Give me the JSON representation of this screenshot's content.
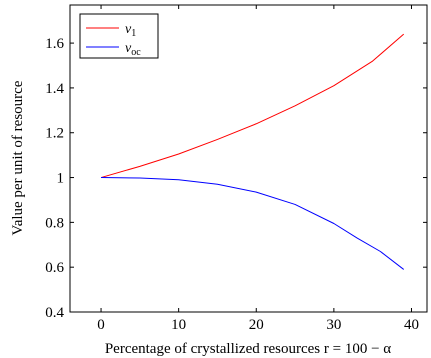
{
  "chart_data": {
    "type": "line",
    "title": "",
    "xlabel": "Percentage of crystallized resources r = 100 − α",
    "ylabel": "Value per unit of resource",
    "xlim": [
      -4,
      42
    ],
    "ylim": [
      0.4,
      1.77
    ],
    "xticks": [
      0,
      10,
      20,
      30,
      40
    ],
    "yticks": [
      0.4,
      0.6,
      0.8,
      1.0,
      1.2,
      1.4,
      1.6
    ],
    "ytick_labels": [
      "0.4",
      "0.6",
      "0.8",
      "1",
      "1.2",
      "1.4",
      "1.6"
    ],
    "xtick_labels": [
      "0",
      "10",
      "20",
      "30",
      "40"
    ],
    "grid": false,
    "legend_position": "top-left",
    "series": [
      {
        "name": "v1",
        "label_main": "v",
        "label_sub": "1",
        "color": "#ff0000",
        "x": [
          0,
          5,
          10,
          15,
          20,
          25,
          30,
          35,
          39
        ],
        "y": [
          1.0,
          1.05,
          1.105,
          1.17,
          1.24,
          1.32,
          1.41,
          1.52,
          1.64
        ]
      },
      {
        "name": "voc",
        "label_main": "v",
        "label_sub": "oc",
        "color": "#0000ff",
        "x": [
          0,
          5,
          10,
          15,
          20,
          25,
          30,
          33,
          36,
          39
        ],
        "y": [
          1.0,
          0.998,
          0.99,
          0.97,
          0.935,
          0.88,
          0.795,
          0.73,
          0.67,
          0.59
        ]
      }
    ]
  }
}
